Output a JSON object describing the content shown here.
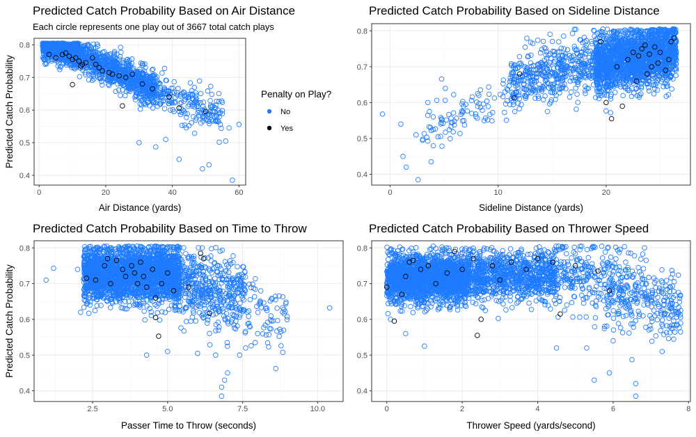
{
  "colors": {
    "no": "#1f7bff",
    "yes": "#000000",
    "grid_major": "#ebebeb",
    "grid_minor": "#f5f5f5",
    "panel_border": "#333333"
  },
  "legend": {
    "title": "Penalty on Play?",
    "entries": [
      {
        "label": "No",
        "color": "#1f7bff"
      },
      {
        "label": "Yes",
        "color": "#000000"
      }
    ]
  },
  "chart_data": [
    {
      "type": "scatter",
      "title": "Predicted Catch Probability Based on Air Distance",
      "subtitle": "Each circle represents one play out of 3667 total catch plays",
      "xlabel": "Air Distance (yards)",
      "ylabel": "Predicted Catch Probability",
      "xlim": [
        -1.5,
        62
      ],
      "ylim": [
        0.37,
        0.82
      ],
      "xticks": [
        0,
        20,
        40,
        60
      ],
      "yticks": [
        0.4,
        0.5,
        0.6,
        0.7,
        0.8
      ],
      "xtick_labels": [
        "0",
        "20",
        "40",
        "60"
      ],
      "ytick_labels": [
        "0.4",
        "0.5",
        "0.6",
        "0.7",
        "0.8"
      ],
      "grid": true,
      "clusters_no": [
        {
          "n": 650,
          "x": [
            1,
            12
          ],
          "yfn": "line",
          "a": 0.8,
          "b": -0.0025,
          "sd": 0.02
        },
        {
          "n": 900,
          "x": [
            10,
            35
          ],
          "yfn": "line",
          "a": 0.82,
          "b": -0.0045,
          "sd": 0.025
        },
        {
          "n": 260,
          "x": [
            30,
            55
          ],
          "yfn": "line",
          "a": 0.8,
          "b": -0.004,
          "sd": 0.03
        }
      ],
      "points_no": [
        [
          58,
          0.385
        ],
        [
          49,
          0.42
        ],
        [
          51,
          0.432
        ],
        [
          42,
          0.449
        ],
        [
          56,
          0.505
        ],
        [
          60,
          0.556
        ],
        [
          57,
          0.545
        ],
        [
          35,
          0.487
        ],
        [
          38,
          0.51
        ],
        [
          30,
          0.5
        ]
      ],
      "points_yes": [
        [
          3,
          0.77
        ],
        [
          5,
          0.76
        ],
        [
          7,
          0.77
        ],
        [
          8,
          0.775
        ],
        [
          9,
          0.765
        ],
        [
          10,
          0.755
        ],
        [
          11,
          0.76
        ],
        [
          12,
          0.75
        ],
        [
          12.5,
          0.735
        ],
        [
          13,
          0.74
        ],
        [
          14,
          0.745
        ],
        [
          16,
          0.76
        ],
        [
          17,
          0.74
        ],
        [
          18,
          0.73
        ],
        [
          19,
          0.72
        ],
        [
          21,
          0.715
        ],
        [
          22,
          0.71
        ],
        [
          24,
          0.705
        ],
        [
          26,
          0.7
        ],
        [
          28,
          0.71
        ],
        [
          31,
          0.68
        ],
        [
          34,
          0.665
        ],
        [
          39,
          0.64
        ],
        [
          10,
          0.678
        ],
        [
          25,
          0.613
        ],
        [
          42,
          0.606
        ],
        [
          50,
          0.596
        ]
      ]
    },
    {
      "type": "scatter",
      "title": "Predicted Catch Probability Based on Sideline Distance",
      "subtitle": "",
      "xlabel": "Sideline Distance (yards)",
      "ylabel": "",
      "xlim": [
        -1.7,
        27.8
      ],
      "ylim": [
        0.37,
        0.82
      ],
      "xticks": [
        0,
        10,
        20
      ],
      "yticks": [
        0.4,
        0.5,
        0.6,
        0.7,
        0.8
      ],
      "xtick_labels": [
        "0",
        "10",
        "20"
      ],
      "ytick_labels": [
        "0.4",
        "0.5",
        "0.6",
        "0.7",
        "0.8"
      ],
      "grid": true,
      "clusters_no": [
        {
          "n": 1900,
          "x": [
            19,
            26.5
          ],
          "yfn": "line",
          "a": 0.6,
          "b": 0.0055,
          "sd": 0.04
        },
        {
          "n": 450,
          "x": [
            11,
            19
          ],
          "yfn": "line",
          "a": 0.55,
          "b": 0.009,
          "sd": 0.04
        },
        {
          "n": 90,
          "x": [
            3,
            11
          ],
          "yfn": "line",
          "a": 0.48,
          "b": 0.013,
          "sd": 0.035
        }
      ],
      "points_no": [
        [
          -0.7,
          0.568
        ],
        [
          1,
          0.54
        ],
        [
          1.2,
          0.45
        ],
        [
          1.5,
          0.42
        ],
        [
          2.6,
          0.385
        ],
        [
          3.5,
          0.6
        ],
        [
          3.8,
          0.435
        ],
        [
          4,
          0.56
        ],
        [
          2.4,
          0.51
        ],
        [
          3,
          0.495
        ]
      ],
      "points_yes": [
        [
          11.5,
          0.613
        ],
        [
          12,
          0.68
        ],
        [
          19.5,
          0.77
        ],
        [
          20,
          0.6
        ],
        [
          20.5,
          0.555
        ],
        [
          21.5,
          0.59
        ],
        [
          22,
          0.72
        ],
        [
          22.5,
          0.74
        ],
        [
          23,
          0.73
        ],
        [
          23.3,
          0.75
        ],
        [
          23.6,
          0.76
        ],
        [
          24,
          0.735
        ],
        [
          24.2,
          0.7
        ],
        [
          24.5,
          0.755
        ],
        [
          24.8,
          0.71
        ],
        [
          25,
          0.74
        ],
        [
          25.5,
          0.69
        ],
        [
          26,
          0.77
        ],
        [
          26.3,
          0.78
        ],
        [
          23.8,
          0.68
        ],
        [
          22.8,
          0.66
        ],
        [
          21,
          0.7
        ],
        [
          25.8,
          0.72
        ]
      ]
    },
    {
      "type": "scatter",
      "title": "Predicted Catch Probability Based on Time to Throw",
      "subtitle": "",
      "xlabel": "Passer Time to Throw (seconds)",
      "ylabel": "Predicted Catch Probability",
      "xlim": [
        0.55,
        10.85
      ],
      "ylim": [
        0.37,
        0.82
      ],
      "xticks": [
        2.5,
        5.0,
        7.5,
        10.0
      ],
      "yticks": [
        0.4,
        0.5,
        0.6,
        0.7,
        0.8
      ],
      "xtick_labels": [
        "2.5",
        "5.0",
        "7.5",
        "10.0"
      ],
      "ytick_labels": [
        "0.4",
        "0.5",
        "0.6",
        "0.7",
        "0.8"
      ],
      "grid": true,
      "clusters_no": [
        {
          "n": 2600,
          "x": [
            2.2,
            5.4
          ],
          "yfn": "flat",
          "a": 0.725,
          "b": 0,
          "sd": 0.038
        },
        {
          "n": 500,
          "x": [
            5.2,
            7.6
          ],
          "yfn": "line",
          "a": 0.8,
          "b": -0.018,
          "sd": 0.05
        },
        {
          "n": 70,
          "x": [
            7.5,
            9
          ],
          "yfn": "flat",
          "a": 0.62,
          "b": 0,
          "sd": 0.05
        }
      ],
      "points_no": [
        [
          0.95,
          0.71
        ],
        [
          1.2,
          0.743
        ],
        [
          10.4,
          0.632
        ],
        [
          8.6,
          0.655
        ],
        [
          6.8,
          0.385
        ],
        [
          6.8,
          0.41
        ],
        [
          6.9,
          0.43
        ],
        [
          7.0,
          0.45
        ],
        [
          7.4,
          0.5
        ],
        [
          7.6,
          0.52
        ],
        [
          6.0,
          0.505
        ],
        [
          5.0,
          0.51
        ],
        [
          4.3,
          0.5
        ],
        [
          2.1,
          0.62
        ],
        [
          2.0,
          0.74
        ],
        [
          6.6,
          0.5
        ],
        [
          8.0,
          0.56
        ]
      ],
      "points_yes": [
        [
          2.6,
          0.71
        ],
        [
          2.9,
          0.75
        ],
        [
          3.1,
          0.7
        ],
        [
          3.3,
          0.765
        ],
        [
          3.5,
          0.74
        ],
        [
          3.6,
          0.72
        ],
        [
          3.8,
          0.75
        ],
        [
          3.9,
          0.73
        ],
        [
          4.0,
          0.7
        ],
        [
          4.1,
          0.76
        ],
        [
          4.2,
          0.72
        ],
        [
          4.3,
          0.69
        ],
        [
          4.5,
          0.74
        ],
        [
          4.6,
          0.66
        ],
        [
          4.8,
          0.7
        ],
        [
          5.0,
          0.73
        ],
        [
          5.2,
          0.68
        ],
        [
          5.7,
          0.69
        ],
        [
          6.1,
          0.785
        ],
        [
          6.2,
          0.77
        ],
        [
          4.6,
          0.605
        ],
        [
          4.7,
          0.553
        ],
        [
          6.4,
          0.617
        ],
        [
          3.0,
          0.77
        ],
        [
          2.3,
          0.715
        ]
      ]
    },
    {
      "type": "scatter",
      "title": "Predicted Catch Probability Based on Thrower Speed",
      "subtitle": "",
      "xlabel": "Thrower Speed (yards/second)",
      "ylabel": "",
      "xlim": [
        -0.4,
        8.05
      ],
      "ylim": [
        0.37,
        0.82
      ],
      "xticks": [
        0,
        2,
        4,
        6,
        8
      ],
      "yticks": [
        0.4,
        0.5,
        0.6,
        0.7,
        0.8
      ],
      "xtick_labels": [
        "0",
        "2",
        "4",
        "6",
        "8"
      ],
      "ytick_labels": [
        "0.4",
        "0.5",
        "0.6",
        "0.7",
        "0.8"
      ],
      "grid": true,
      "clusters_no": [
        {
          "n": 1900,
          "x": [
            0,
            2.2
          ],
          "yfn": "flat",
          "a": 0.715,
          "b": 0,
          "sd": 0.035
        },
        {
          "n": 900,
          "x": [
            2.2,
            4.5
          ],
          "yfn": "flat",
          "a": 0.725,
          "b": 0,
          "sd": 0.035
        },
        {
          "n": 500,
          "x": [
            4.5,
            7.8
          ],
          "yfn": "line",
          "a": 0.9,
          "b": -0.035,
          "sd": 0.05
        }
      ],
      "points_no": [
        [
          6.6,
          0.385
        ],
        [
          5.5,
          0.43
        ],
        [
          5.9,
          0.45
        ],
        [
          6.6,
          0.42
        ],
        [
          6.5,
          0.487
        ],
        [
          7.3,
          0.51
        ],
        [
          5.3,
          0.52
        ],
        [
          6.0,
          0.54
        ],
        [
          7.5,
          0.58
        ],
        [
          7.7,
          0.615
        ],
        [
          1.0,
          0.525
        ],
        [
          0.5,
          0.56
        ],
        [
          4.5,
          0.52
        ],
        [
          0.1,
          0.6
        ]
      ],
      "points_yes": [
        [
          0.0,
          0.69
        ],
        [
          0.2,
          0.595
        ],
        [
          0.4,
          0.67
        ],
        [
          0.5,
          0.72
        ],
        [
          0.7,
          0.765
        ],
        [
          0.9,
          0.74
        ],
        [
          1.1,
          0.75
        ],
        [
          1.3,
          0.7
        ],
        [
          1.6,
          0.73
        ],
        [
          1.8,
          0.79
        ],
        [
          2.0,
          0.74
        ],
        [
          2.3,
          0.77
        ],
        [
          2.5,
          0.6
        ],
        [
          2.4,
          0.555
        ],
        [
          2.8,
          0.75
        ],
        [
          3.0,
          0.71
        ],
        [
          3.3,
          0.76
        ],
        [
          3.7,
          0.74
        ],
        [
          4.0,
          0.77
        ],
        [
          4.4,
          0.76
        ],
        [
          4.6,
          0.615
        ],
        [
          5.0,
          0.75
        ],
        [
          5.6,
          0.735
        ],
        [
          5.9,
          0.68
        ],
        [
          0.6,
          0.76
        ]
      ]
    }
  ]
}
